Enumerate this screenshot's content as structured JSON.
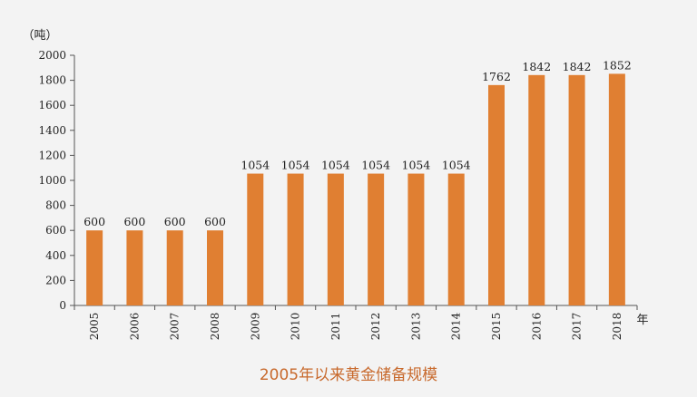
{
  "chart_data": {
    "type": "bar",
    "title": "2005年以来黄金储备规模",
    "ylabel": "（吨）",
    "xlabel": "年",
    "categories": [
      "2005",
      "2006",
      "2007",
      "2008",
      "2009",
      "2010",
      "2011",
      "2012",
      "2013",
      "2014",
      "2015",
      "2016",
      "2017",
      "2018"
    ],
    "values": [
      600,
      600,
      600,
      600,
      1054,
      1054,
      1054,
      1054,
      1054,
      1054,
      1762,
      1842,
      1842,
      1852
    ],
    "ylim": [
      0,
      2000
    ],
    "yticks": [
      0,
      200,
      400,
      600,
      800,
      1000,
      1200,
      1400,
      1600,
      1800,
      2000
    ],
    "grid": false,
    "data_labels": true,
    "bar_color": "#e07f32",
    "title_color": "#c8692c"
  }
}
